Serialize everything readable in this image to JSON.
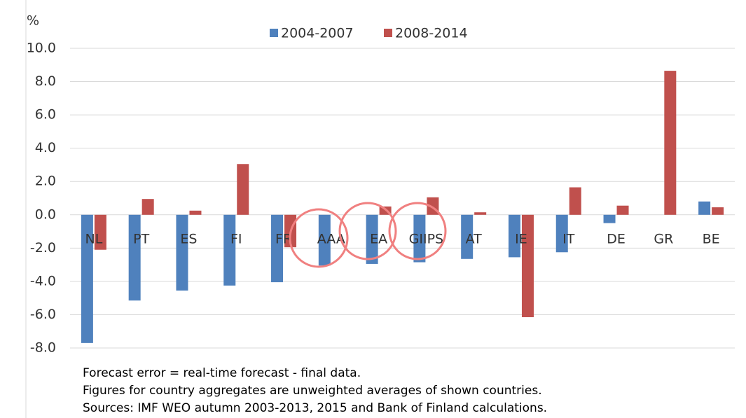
{
  "chart_data": {
    "type": "bar",
    "y_unit": "%",
    "categories": [
      "NL",
      "PT",
      "ES",
      "FI",
      "FR",
      "AAA",
      "EA",
      "GIIPS",
      "AT",
      "IE",
      "IT",
      "DE",
      "GR",
      "BE"
    ],
    "series": [
      {
        "name": "2004-2007",
        "color": "#4f81bd",
        "values": [
          -7.7,
          -5.15,
          -4.55,
          -4.25,
          -4.05,
          -3.05,
          -2.95,
          -2.85,
          -2.65,
          -2.55,
          -2.25,
          -0.5,
          null,
          0.8
        ]
      },
      {
        "name": "2008-2014",
        "color": "#c0504d",
        "values": [
          -2.1,
          0.95,
          0.25,
          3.05,
          -1.95,
          null,
          0.5,
          1.05,
          0.15,
          -6.15,
          1.65,
          0.55,
          8.65,
          0.45
        ]
      }
    ],
    "ylim": [
      -8,
      10
    ],
    "yticks": [
      {
        "value": -8,
        "label": "-8.0"
      },
      {
        "value": -6,
        "label": "-6.0"
      },
      {
        "value": -4,
        "label": "-4.0"
      },
      {
        "value": -2,
        "label": "-2.0"
      },
      {
        "value": 0,
        "label": "0.0"
      },
      {
        "value": 2,
        "label": "2.0"
      },
      {
        "value": 4,
        "label": "4.0"
      },
      {
        "value": 6,
        "label": "6.0"
      },
      {
        "value": 8,
        "label": "8.0"
      },
      {
        "value": 10,
        "label": "10.0"
      }
    ],
    "grid": true,
    "legend": "top",
    "notes": [
      "Forecast error = real-time forecast - final data.",
      "Figures for country aggregates are unweighted averages of shown countries.",
      "Sources: IMF WEO autumn 2003-2013, 2015 and Bank of Finland calculations."
    ]
  }
}
